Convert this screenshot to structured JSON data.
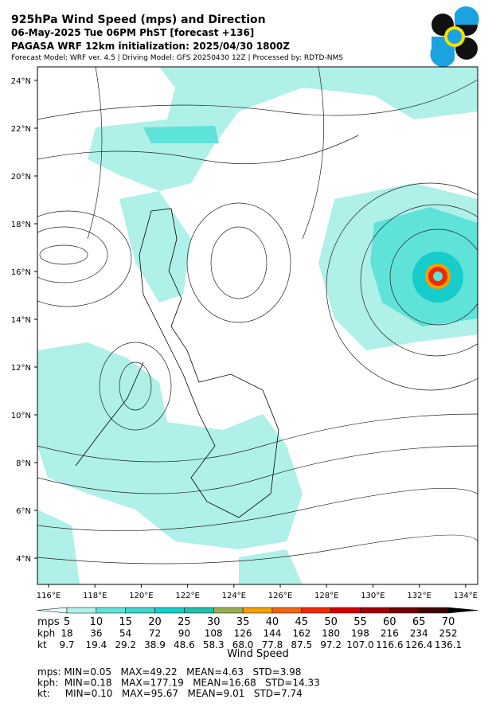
{
  "header": {
    "title": "925hPa Wind Speed (mps) and Direction",
    "line2": "06-May-2025 Tue 06PM PhST [forecast +136]",
    "line3": "PAGASA WRF 12km initialization: 2025/04/30 1800Z",
    "line4": "Forecast Model: WRF ver. 4.5 | Driving Model: GFS 20250430 12Z | Processed by: RDTD-NMS"
  },
  "map": {
    "xticks": [
      "116°E",
      "118°E",
      "120°E",
      "122°E",
      "124°E",
      "126°E",
      "128°E",
      "130°E",
      "132°E",
      "134°E"
    ],
    "yticks": [
      "24°N",
      "22°N",
      "20°N",
      "18°N",
      "16°N",
      "14°N",
      "12°N",
      "10°N",
      "8°N",
      "6°N",
      "4°N"
    ]
  },
  "colorbar": {
    "colors": [
      "#e2fbf8",
      "#b2f1ea",
      "#5fe3d8",
      "#3dd6cf",
      "#17cdcb",
      "#20c0aa",
      "#9aae55",
      "#f2a000",
      "#f06412",
      "#f02a00",
      "#d20000",
      "#a00000",
      "#720000",
      "#420000",
      "#000000"
    ],
    "rows": [
      {
        "unit": "mps",
        "values": [
          "5",
          "10",
          "15",
          "20",
          "25",
          "30",
          "35",
          "40",
          "45",
          "50",
          "55",
          "60",
          "65",
          "70"
        ]
      },
      {
        "unit": "kph",
        "values": [
          "18",
          "36",
          "54",
          "72",
          "90",
          "108",
          "126",
          "144",
          "162",
          "180",
          "198",
          "216",
          "234",
          "252"
        ]
      },
      {
        "unit": "kt",
        "values": [
          "9.7",
          "19.4",
          "29.2",
          "38.9",
          "48.6",
          "58.3",
          "68.0",
          "77.8",
          "87.5",
          "97.2",
          "107.0",
          "116.6",
          "126.4",
          "136.1"
        ]
      }
    ],
    "label": "Wind Speed"
  },
  "stats": [
    "mps: MIN=0.05   MAX=49.22   MEAN=4.63   STD=3.98",
    "kph:  MIN=0.18   MAX=177.19   MEAN=16.68   STD=14.33",
    "kt:     MIN=0.10   MAX=95.67   MEAN=9.01   STD=7.74"
  ]
}
